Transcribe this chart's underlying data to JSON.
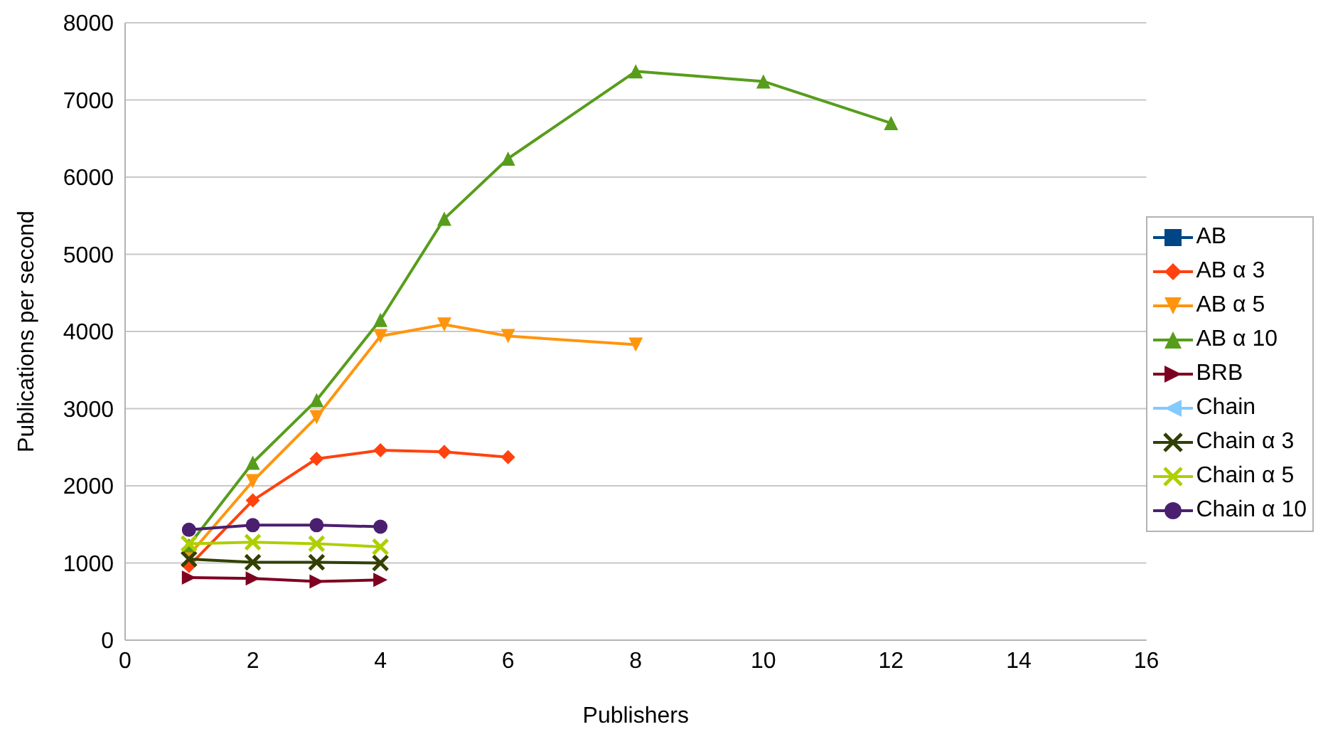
{
  "chart_data": {
    "type": "line",
    "xlabel": "Publishers",
    "ylabel": "Publications per second",
    "xlim": [
      0,
      16
    ],
    "xticks": [
      0,
      2,
      4,
      6,
      8,
      10,
      12,
      14,
      16
    ],
    "ylim": [
      0,
      8000
    ],
    "yticks": [
      0,
      1000,
      2000,
      3000,
      4000,
      5000,
      6000,
      7000,
      8000
    ],
    "grid": "y",
    "legend": "right",
    "line_style": "solid",
    "series": [
      {
        "name": "AB",
        "color": "#004586",
        "marker": "square"
      },
      {
        "name": "AB α 3",
        "color": "#ff420e",
        "marker": "diamond",
        "x": [
          1,
          2,
          3,
          4,
          5,
          6
        ],
        "values": [
          960,
          1810,
          2350,
          2460,
          2440,
          2370
        ]
      },
      {
        "name": "AB α 5",
        "color": "#ff950e",
        "marker": "triangle-down",
        "x": [
          1,
          2,
          3,
          4,
          5,
          6,
          8
        ],
        "values": [
          1100,
          2060,
          2890,
          3940,
          4090,
          3940,
          3830
        ]
      },
      {
        "name": "AB α 10",
        "color": "#579d1c",
        "marker": "triangle",
        "x": [
          1,
          2,
          3,
          4,
          5,
          6,
          8,
          10,
          12
        ],
        "values": [
          1230,
          2300,
          3110,
          4150,
          5460,
          6240,
          7370,
          7240,
          6700
        ]
      },
      {
        "name": "BRB",
        "color": "#7e0021",
        "marker": "triangle-right",
        "x": [
          1,
          2,
          3,
          4
        ],
        "values": [
          810,
          800,
          760,
          780
        ]
      },
      {
        "name": "Chain",
        "color": "#83caff",
        "marker": "triangle-left"
      },
      {
        "name": "Chain α 3",
        "color": "#314004",
        "marker": "cross",
        "x": [
          1,
          2,
          3,
          4
        ],
        "values": [
          1050,
          1010,
          1010,
          1000
        ]
      },
      {
        "name": "Chain α 5",
        "color": "#aecf00",
        "marker": "cross",
        "x": [
          1,
          2,
          3,
          4
        ],
        "values": [
          1250,
          1270,
          1250,
          1210
        ]
      },
      {
        "name": "Chain α 10",
        "color": "#4b1f6f",
        "marker": "circle",
        "x": [
          1,
          2,
          3,
          4
        ],
        "values": [
          1430,
          1490,
          1490,
          1470
        ]
      }
    ]
  }
}
